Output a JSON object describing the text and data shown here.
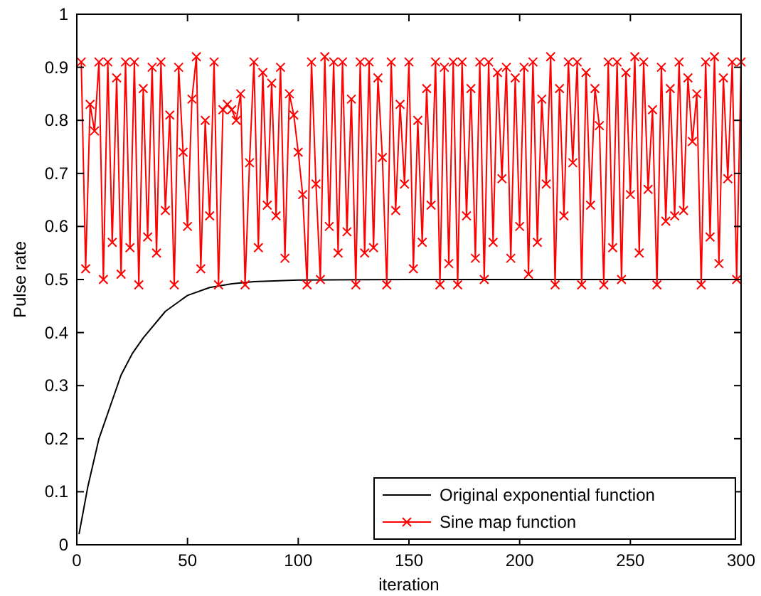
{
  "chart_data": {
    "type": "line",
    "xlabel": "iteration",
    "ylabel": "Pulse rate",
    "xlim": [
      0,
      300
    ],
    "ylim": [
      0,
      1
    ],
    "xticks": [
      0,
      50,
      100,
      150,
      200,
      250,
      300
    ],
    "yticks": [
      0,
      0.1,
      0.2,
      0.3,
      0.4,
      0.5,
      0.6,
      0.7,
      0.8,
      0.9,
      1
    ],
    "grid": false,
    "legend": "bottom right",
    "series": [
      {
        "name": "Original exponential function",
        "color": "#000000",
        "marker": "none",
        "x": [
          1,
          5,
          10,
          15,
          20,
          25,
          30,
          40,
          50,
          60,
          70,
          80,
          100,
          150,
          200,
          250,
          300
        ],
        "values": [
          0.02,
          0.11,
          0.2,
          0.26,
          0.32,
          0.36,
          0.39,
          0.44,
          0.47,
          0.485,
          0.492,
          0.496,
          0.499,
          0.5,
          0.5,
          0.5,
          0.5
        ]
      },
      {
        "name": "Sine map function",
        "color": "#ff0000",
        "marker": "cross",
        "x": [
          2,
          4,
          6,
          8,
          10,
          12,
          14,
          16,
          18,
          20,
          22,
          24,
          26,
          28,
          30,
          32,
          34,
          36,
          38,
          40,
          42,
          44,
          46,
          48,
          50,
          52,
          54,
          56,
          58,
          60,
          62,
          64,
          66,
          68,
          70,
          72,
          74,
          76,
          78,
          80,
          82,
          84,
          86,
          88,
          90,
          92,
          94,
          96,
          98,
          100,
          102,
          104,
          106,
          108,
          110,
          112,
          114,
          116,
          118,
          120,
          122,
          124,
          126,
          128,
          130,
          132,
          134,
          136,
          138,
          140,
          142,
          144,
          146,
          148,
          150,
          152,
          154,
          156,
          158,
          160,
          162,
          164,
          166,
          168,
          170,
          172,
          174,
          176,
          178,
          180,
          182,
          184,
          186,
          188,
          190,
          192,
          194,
          196,
          198,
          200,
          202,
          204,
          206,
          208,
          210,
          212,
          214,
          216,
          218,
          220,
          222,
          224,
          226,
          228,
          230,
          232,
          234,
          236,
          238,
          240,
          242,
          244,
          246,
          248,
          250,
          252,
          254,
          256,
          258,
          260,
          262,
          264,
          266,
          268,
          270,
          272,
          274,
          276,
          278,
          280,
          282,
          284,
          286,
          288,
          290,
          292,
          294,
          296,
          298,
          300
        ],
        "values": [
          0.91,
          0.52,
          0.83,
          0.78,
          0.91,
          0.5,
          0.91,
          0.57,
          0.88,
          0.51,
          0.91,
          0.56,
          0.91,
          0.49,
          0.86,
          0.58,
          0.9,
          0.55,
          0.91,
          0.63,
          0.81,
          0.49,
          0.9,
          0.74,
          0.6,
          0.84,
          0.92,
          0.52,
          0.8,
          0.62,
          0.91,
          0.49,
          0.82,
          0.83,
          0.82,
          0.8,
          0.85,
          0.49,
          0.72,
          0.91,
          0.56,
          0.89,
          0.64,
          0.87,
          0.62,
          0.9,
          0.54,
          0.85,
          0.81,
          0.74,
          0.66,
          0.49,
          0.91,
          0.68,
          0.5,
          0.92,
          0.6,
          0.91,
          0.55,
          0.91,
          0.59,
          0.84,
          0.49,
          0.91,
          0.55,
          0.91,
          0.56,
          0.88,
          0.73,
          0.49,
          0.91,
          0.63,
          0.83,
          0.68,
          0.91,
          0.52,
          0.8,
          0.57,
          0.86,
          0.64,
          0.91,
          0.49,
          0.9,
          0.53,
          0.91,
          0.49,
          0.91,
          0.62,
          0.86,
          0.54,
          0.91,
          0.5,
          0.91,
          0.57,
          0.89,
          0.69,
          0.9,
          0.54,
          0.88,
          0.6,
          0.9,
          0.51,
          0.91,
          0.57,
          0.84,
          0.68,
          0.92,
          0.49,
          0.86,
          0.62,
          0.91,
          0.72,
          0.91,
          0.49,
          0.89,
          0.64,
          0.86,
          0.79,
          0.49,
          0.91,
          0.56,
          0.91,
          0.5,
          0.89,
          0.66,
          0.92,
          0.55,
          0.91,
          0.67,
          0.82,
          0.49,
          0.9,
          0.61,
          0.86,
          0.62,
          0.91,
          0.63,
          0.88,
          0.76,
          0.85,
          0.49,
          0.91,
          0.58,
          0.92,
          0.53,
          0.88,
          0.69,
          0.91,
          0.5,
          0.91
        ]
      }
    ]
  }
}
